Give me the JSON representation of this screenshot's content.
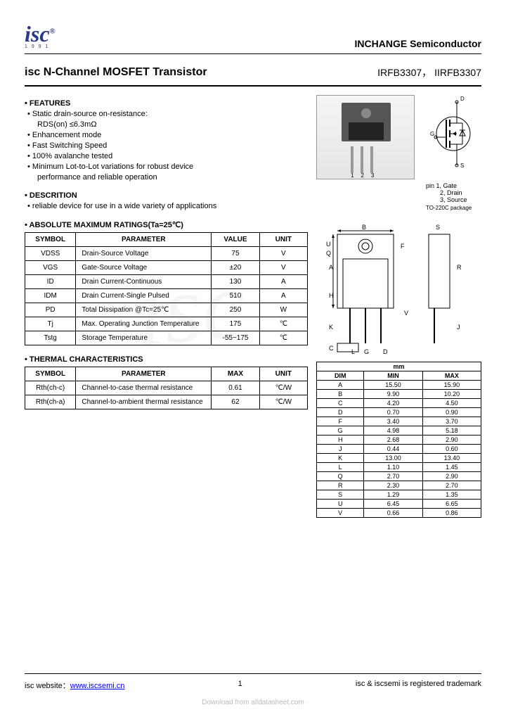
{
  "header": {
    "logo_text": "isc",
    "logo_year": "1 9 9 1",
    "company": "INCHANGE Semiconductor",
    "title": "isc N-Channel MOSFET Transistor",
    "part1": "IRFB3307",
    "part2": "IIRFB3307"
  },
  "features": {
    "heading": "• FEATURES",
    "items": [
      "• Static drain-source on-resistance:",
      "RDS(on) ≤6.3mΩ",
      "• Enhancement mode",
      "• Fast Switching Speed",
      "• 100% avalanche tested",
      "• Minimum Lot-to-Lot variations for robust device",
      "performance and reliable operation"
    ]
  },
  "description": {
    "heading": "• DESCRITION",
    "text": "• reliable device for use in a wide variety of applications"
  },
  "pinout": {
    "p1": "pin 1, Gate",
    "p2": "2, Drain",
    "p3": "3, Source",
    "pkg": "TO-220C package"
  },
  "abs_max": {
    "heading": "• ABSOLUTE MAXIMUM RATINGS(Ta=25℃)",
    "cols": [
      "SYMBOL",
      "PARAMETER",
      "VALUE",
      "UNIT"
    ],
    "rows": [
      [
        "VDSS",
        "Drain-Source Voltage",
        "75",
        "V"
      ],
      [
        "VGS",
        "Gate-Source Voltage",
        "±20",
        "V"
      ],
      [
        "ID",
        "Drain Current-Continuous",
        "130",
        "A"
      ],
      [
        "IDM",
        "Drain Current-Single Pulsed",
        "510",
        "A"
      ],
      [
        "PD",
        "Total Dissipation @Tc=25℃",
        "250",
        "W"
      ],
      [
        "Tj",
        "Max. Operating Junction Temperature",
        "175",
        "℃"
      ],
      [
        "Tstg",
        "Storage Temperature",
        "-55~175",
        "℃"
      ]
    ]
  },
  "thermal": {
    "heading": "• THERMAL CHARACTERISTICS",
    "cols": [
      "SYMBOL",
      "PARAMETER",
      "MAX",
      "UNIT"
    ],
    "rows": [
      [
        "Rth(ch-c)",
        "Channel-to-case thermal resistance",
        "0.61",
        "℃/W"
      ],
      [
        "Rth(ch-a)",
        "Channel-to-ambient thermal resistance",
        "62",
        "℃/W"
      ]
    ]
  },
  "dims": {
    "heading": "mm",
    "cols": [
      "DIM",
      "MIN",
      "MAX"
    ],
    "rows": [
      [
        "A",
        "15.50",
        "15.90"
      ],
      [
        "B",
        "9.90",
        "10.20"
      ],
      [
        "C",
        "4.20",
        "4.50"
      ],
      [
        "D",
        "0.70",
        "0.90"
      ],
      [
        "F",
        "3.40",
        "3.70"
      ],
      [
        "G",
        "4.98",
        "5.18"
      ],
      [
        "H",
        "2.68",
        "2.90"
      ],
      [
        "J",
        "0.44",
        "0.60"
      ],
      [
        "K",
        "13.00",
        "13.40"
      ],
      [
        "L",
        "1.10",
        "1.45"
      ],
      [
        "Q",
        "2.70",
        "2.90"
      ],
      [
        "R",
        "2.30",
        "2.70"
      ],
      [
        "S",
        "1.29",
        "1.35"
      ],
      [
        "U",
        "6.45",
        "6.65"
      ],
      [
        "V",
        "0.66",
        "0.86"
      ]
    ]
  },
  "footer": {
    "web_lbl": "isc website：",
    "web_url": "www.iscsemi.cn",
    "page": "1",
    "trademark": "isc & iscsemi is registered trademark",
    "download": "Download from alldatasheet.com"
  },
  "colors": {
    "logo": "#2a3a8a",
    "border": "#000000",
    "link": "#0000ee",
    "watermark": "#889"
  }
}
